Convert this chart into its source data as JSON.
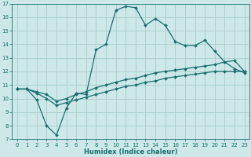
{
  "xlabel": "Humidex (Indice chaleur)",
  "ylabel": "",
  "xlim": [
    -0.5,
    23.5
  ],
  "ylim": [
    7,
    17
  ],
  "xticks": [
    0,
    1,
    2,
    3,
    4,
    5,
    6,
    7,
    8,
    9,
    10,
    11,
    12,
    13,
    14,
    15,
    16,
    17,
    18,
    19,
    20,
    21,
    22,
    23
  ],
  "yticks": [
    7,
    8,
    9,
    10,
    11,
    12,
    13,
    14,
    15,
    16,
    17
  ],
  "bg_color": "#cce8e8",
  "line_color": "#1a6e6e",
  "grid_color": "#aacccc",
  "line1_x": [
    0,
    1,
    2,
    3,
    4,
    5,
    6,
    7,
    8,
    9,
    10,
    11,
    12,
    13,
    14,
    15,
    16,
    17,
    18,
    19,
    20,
    21,
    22,
    23
  ],
  "line1_y": [
    10.7,
    10.7,
    9.9,
    8.0,
    7.3,
    9.3,
    10.4,
    10.3,
    13.6,
    14.0,
    16.5,
    16.8,
    16.7,
    15.4,
    15.9,
    15.4,
    14.2,
    13.9,
    13.9,
    14.3,
    13.5,
    12.7,
    12.2,
    11.9
  ],
  "line2_x": [
    0,
    1,
    2,
    3,
    4,
    5,
    6,
    7,
    8,
    9,
    10,
    11,
    12,
    13,
    14,
    15,
    16,
    17,
    18,
    19,
    20,
    21,
    22,
    23
  ],
  "line2_y": [
    10.7,
    10.7,
    10.5,
    10.3,
    9.8,
    10.0,
    10.3,
    10.5,
    10.8,
    11.0,
    11.2,
    11.4,
    11.5,
    11.7,
    11.9,
    12.0,
    12.1,
    12.2,
    12.3,
    12.4,
    12.5,
    12.7,
    12.8,
    12.0
  ],
  "line3_x": [
    0,
    1,
    2,
    3,
    4,
    5,
    6,
    7,
    8,
    9,
    10,
    11,
    12,
    13,
    14,
    15,
    16,
    17,
    18,
    19,
    20,
    21,
    22,
    23
  ],
  "line3_y": [
    10.7,
    10.7,
    10.4,
    10.0,
    9.5,
    9.7,
    9.9,
    10.1,
    10.3,
    10.5,
    10.7,
    10.9,
    11.0,
    11.2,
    11.3,
    11.5,
    11.6,
    11.7,
    11.8,
    11.9,
    12.0,
    12.0,
    12.0,
    12.0
  ],
  "xlabel_fontsize": 6,
  "tick_fontsize": 5,
  "linewidth": 0.9,
  "marker": "D",
  "markersize": 2.0
}
